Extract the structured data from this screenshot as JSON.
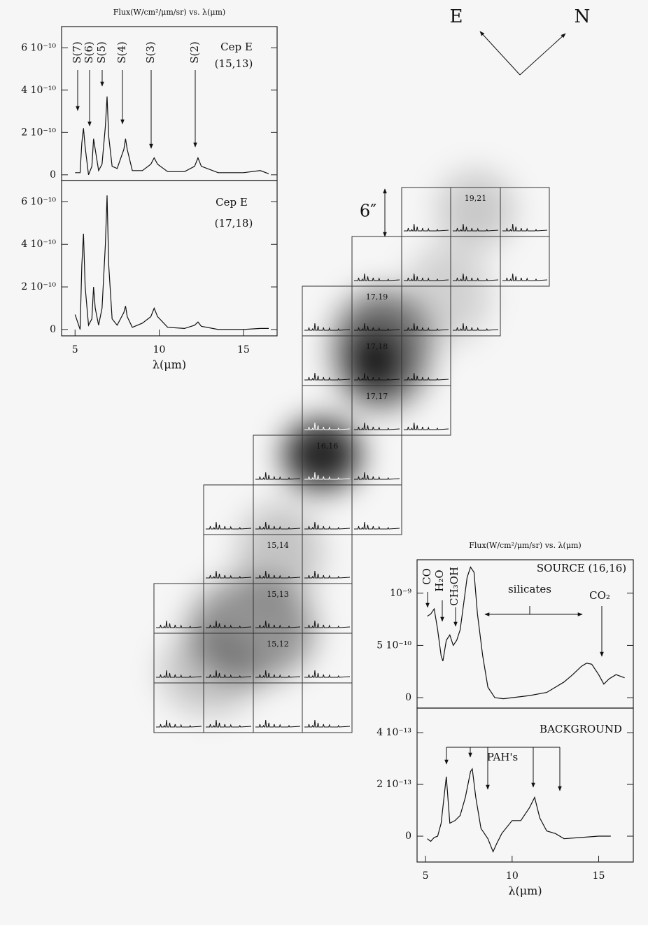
{
  "chart_data": [
    {
      "type": "line",
      "title": "Flux(W/cm²/μm/sr) vs. λ(μm)",
      "annotations": [
        "S(7)",
        "S(6)",
        "S(5)",
        "S(4)",
        "S(3)",
        "S(2)",
        "Cep E",
        "(15,13)"
      ],
      "x": [
        5.0,
        5.3,
        5.4,
        5.5,
        5.6,
        5.8,
        6.0,
        6.1,
        6.2,
        6.4,
        6.6,
        6.8,
        6.9,
        7.0,
        7.2,
        7.5,
        7.9,
        8.0,
        8.1,
        8.4,
        9.0,
        9.5,
        9.7,
        9.9,
        10.5,
        11.5,
        12.1,
        12.3,
        12.5,
        13.5,
        15.0,
        16.0,
        16.5
      ],
      "series": [
        {
          "color": "#111",
          "values": [
            1e-11,
            1e-11,
            1.5e-10,
            2.2e-10,
            1.3e-10,
            0,
            4e-11,
            1.7e-10,
            1.2e-10,
            2e-11,
            5e-11,
            2.3e-10,
            3.7e-10,
            1.8e-10,
            4e-11,
            3e-11,
            1.2e-10,
            1.7e-10,
            1.2e-10,
            2e-11,
            2e-11,
            5e-11,
            8e-11,
            5e-11,
            1.5e-11,
            1.5e-11,
            4e-11,
            8e-11,
            4e-11,
            1e-11,
            1e-11,
            2e-11,
            5e-12
          ]
        }
      ],
      "xlim": [
        4.2,
        17
      ],
      "ylim": [
        -2.7e-11,
        7e-10
      ],
      "yticks": [
        0,
        {
          "value": 2e-10,
          "label": "2 10⁻¹⁰"
        },
        {
          "value": 4e-10,
          "label": "4 10⁻¹⁰"
        },
        {
          "value": 6e-10,
          "label": "6 10⁻¹⁰"
        }
      ]
    },
    {
      "type": "line",
      "annotations": [
        "Cep E",
        "(17,18)"
      ],
      "xlabel": "λ(μm)",
      "x": [
        5.0,
        5.3,
        5.4,
        5.5,
        5.6,
        5.8,
        6.0,
        6.1,
        6.2,
        6.4,
        6.6,
        6.8,
        6.9,
        7.0,
        7.2,
        7.5,
        7.9,
        8.0,
        8.1,
        8.4,
        9.0,
        9.5,
        9.7,
        9.9,
        10.5,
        11.5,
        12.1,
        12.3,
        12.5,
        13.5,
        15.0,
        16.0,
        16.5
      ],
      "series": [
        {
          "color": "#111",
          "values": [
            7e-11,
            0,
            3e-10,
            4.5e-10,
            2e-10,
            2e-11,
            5e-11,
            2e-10,
            1e-10,
            2e-11,
            1e-10,
            4e-10,
            6.3e-10,
            3e-10,
            5e-11,
            2e-11,
            8e-11,
            1.1e-10,
            6e-11,
            1e-11,
            3e-11,
            6e-11,
            1e-10,
            6e-11,
            1e-11,
            5e-12,
            2e-11,
            3.5e-11,
            1.5e-11,
            0,
            0,
            5e-12,
            5e-12
          ]
        }
      ],
      "xlim": [
        4.2,
        17
      ],
      "ylim": [
        -3e-11,
        7e-10
      ],
      "xticks": [
        5,
        10,
        15
      ],
      "yticks": [
        0,
        {
          "value": 2e-10,
          "label": "2 10⁻¹⁰"
        },
        {
          "value": 4e-10,
          "label": "4 10⁻¹⁰"
        },
        {
          "value": 6e-10,
          "label": "6 10⁻¹⁰"
        }
      ]
    },
    {
      "type": "line",
      "title": "Flux(W/cm²/μm/sr) vs. λ(μm)",
      "annotations": [
        "SOURCE (16,16)",
        "CO",
        "H₂O",
        "CH₃OH",
        "silicates",
        "CO₂"
      ],
      "x": [
        5.1,
        5.3,
        5.5,
        5.7,
        5.9,
        6.0,
        6.2,
        6.4,
        6.6,
        6.8,
        7.0,
        7.2,
        7.4,
        7.6,
        7.8,
        8.0,
        8.3,
        8.6,
        9.0,
        9.5,
        10,
        11,
        12,
        13,
        13.5,
        14.0,
        14.3,
        14.6,
        15.0,
        15.3,
        15.6,
        16.0,
        16.5
      ],
      "series": [
        {
          "color": "#111",
          "values": [
            7.8e-10,
            8e-10,
            8.5e-10,
            6.5e-10,
            4e-10,
            3.5e-10,
            5.5e-10,
            6e-10,
            5e-10,
            5.5e-10,
            6.5e-10,
            9e-10,
            1.15e-09,
            1.25e-09,
            1.2e-09,
            8e-10,
            4e-10,
            1e-10,
            0,
            -1e-11,
            0,
            2e-11,
            5e-11,
            1.5e-10,
            2.2e-10,
            3e-10,
            3.3e-10,
            3.2e-10,
            2.2e-10,
            1.3e-10,
            1.8e-10,
            2.2e-10,
            1.9e-10
          ]
        }
      ],
      "xlim": [
        4.51,
        17
      ],
      "ylim": [
        -1e-10,
        1.32e-09
      ],
      "yticks": [
        0,
        {
          "value": 5e-10,
          "label": "5 10⁻¹⁰"
        },
        {
          "value": 1e-09,
          "label": "10⁻⁹"
        }
      ]
    },
    {
      "type": "line",
      "annotations": [
        "BACKGROUND",
        "PAH's"
      ],
      "xlabel": "λ(μm)",
      "x": [
        5.1,
        5.3,
        5.5,
        5.7,
        5.9,
        6.1,
        6.2,
        6.4,
        6.7,
        7.0,
        7.3,
        7.6,
        7.7,
        7.9,
        8.2,
        8.6,
        8.9,
        9.1,
        9.4,
        10,
        10.5,
        11.0,
        11.3,
        11.6,
        12,
        12.5,
        13,
        14,
        15,
        15.7
      ],
      "series": [
        {
          "color": "#111",
          "values": [
            -1e-14,
            -2e-14,
            -5e-15,
            0,
            5e-14,
            1.7e-13,
            2.3e-13,
            5e-14,
            6e-14,
            8e-14,
            1.5e-13,
            2.5e-13,
            2.6e-13,
            1.5e-13,
            3e-14,
            -1e-14,
            -6e-14,
            -3e-14,
            1e-14,
            6e-14,
            6e-14,
            1.1e-13,
            1.5e-13,
            7e-14,
            2e-14,
            1e-14,
            -1e-14,
            -5e-15,
            0,
            0
          ]
        }
      ],
      "xlim": [
        4.51,
        17
      ],
      "ylim": [
        -1e-13,
        4.95e-13
      ],
      "xticks": [
        5,
        10,
        15
      ],
      "yticks": [
        0,
        {
          "value": 2e-13,
          "label": "2 10⁻¹³"
        },
        {
          "value": 4e-13,
          "label": "4 10⁻¹³"
        }
      ]
    },
    {
      "type": "map",
      "labels": [
        "19,21",
        "17,19",
        "17,18",
        "17,17",
        "16,16",
        "15,14",
        "15,13",
        "15,12"
      ],
      "compass": [
        "E",
        "N"
      ],
      "scale_label": "6″"
    }
  ]
}
